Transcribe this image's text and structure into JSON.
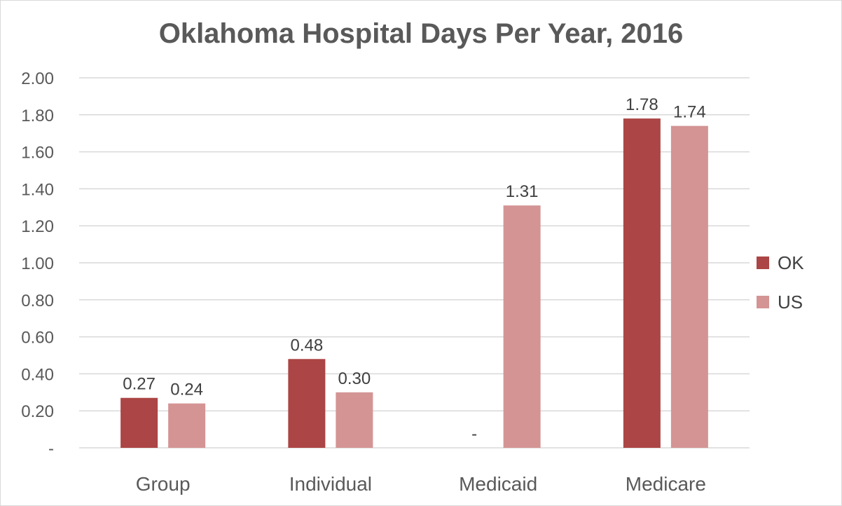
{
  "chart_data": {
    "type": "bar",
    "title": "Oklahoma Hospital Days Per Year, 2016",
    "categories": [
      "Group",
      "Individual",
      "Medicaid",
      "Medicare"
    ],
    "series": [
      {
        "name": "OK",
        "values": [
          0.27,
          0.48,
          0,
          1.78
        ],
        "labels": [
          "0.27",
          "0.48",
          "-",
          "1.78"
        ],
        "color": "#ac4545"
      },
      {
        "name": "US",
        "values": [
          0.24,
          0.3,
          1.31,
          1.74
        ],
        "labels": [
          "0.24",
          "0.30",
          "1.31",
          "1.74"
        ],
        "color": "#d49494"
      }
    ],
    "yticks": [
      "-",
      "0.20",
      "0.40",
      "0.60",
      "0.80",
      "1.00",
      "1.20",
      "1.40",
      "1.60",
      "1.80",
      "2.00"
    ],
    "ylim": [
      0,
      2
    ],
    "grid": true,
    "legend": "right",
    "xlabel": "",
    "ylabel": ""
  }
}
